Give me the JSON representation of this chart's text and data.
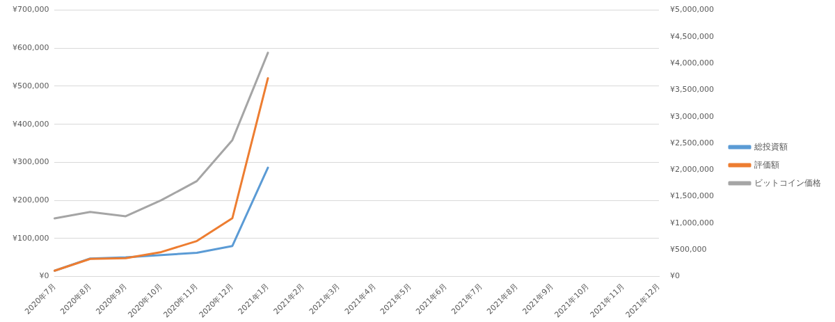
{
  "chart_data": {
    "type": "line",
    "categories": [
      "2020年7月",
      "2020年8月",
      "2020年9月",
      "2020年10月",
      "2020年11月",
      "2020年12月",
      "2021年1月",
      "2021年2月",
      "2021年3月",
      "2021年4月",
      "2021年5月",
      "2021年6月",
      "2021年7月",
      "2021年8月",
      "2021年9月",
      "2021年10月",
      "2021年11月",
      "2021年12月"
    ],
    "series": [
      {
        "name": "総投資額",
        "color": "#5b9bd5",
        "values": [
          15000,
          47000,
          50000,
          56000,
          62000,
          80000,
          286000,
          null,
          null,
          null,
          null,
          null,
          null,
          null,
          null,
          null,
          null,
          null
        ]
      },
      {
        "name": "評価額",
        "color": "#ed7d31",
        "values": [
          15000,
          46000,
          48000,
          64000,
          93000,
          153000,
          521000,
          null,
          null,
          null,
          null,
          null,
          null,
          null,
          null,
          null,
          null,
          null
        ]
      },
      {
        "name": "ビットコイン価格",
        "color": "#a5a5a5",
        "axis": "y2",
        "values": [
          1090000,
          1210000,
          1130000,
          1430000,
          1790000,
          2560000,
          4200000,
          null,
          null,
          null,
          null,
          null,
          null,
          null,
          null,
          null,
          null,
          null
        ]
      }
    ],
    "ylim": [
      0,
      700000
    ],
    "yticks": [
      {
        "value": 0,
        "label": "¥0"
      },
      {
        "value": 100000,
        "label": "¥100,000"
      },
      {
        "value": 200000,
        "label": "¥200,000"
      },
      {
        "value": 300000,
        "label": "¥300,000"
      },
      {
        "value": 400000,
        "label": "¥400,000"
      },
      {
        "value": 500000,
        "label": "¥500,000"
      },
      {
        "value": 600000,
        "label": "¥600,000"
      },
      {
        "value": 700000,
        "label": "¥700,000"
      }
    ],
    "y2lim": [
      0,
      5000000
    ],
    "y2ticks": [
      {
        "value": 0,
        "label": "¥0"
      },
      {
        "value": 500000,
        "label": "¥500,000"
      },
      {
        "value": 1000000,
        "label": "¥1,000,000"
      },
      {
        "value": 1500000,
        "label": "¥1,500,000"
      },
      {
        "value": 2000000,
        "label": "¥2,000,000"
      },
      {
        "value": 2500000,
        "label": "¥2,500,000"
      },
      {
        "value": 3000000,
        "label": "¥3,000,000"
      },
      {
        "value": 3500000,
        "label": "¥3,500,000"
      },
      {
        "value": 4000000,
        "label": "¥4,000,000"
      },
      {
        "value": 4500000,
        "label": "¥4,500,000"
      },
      {
        "value": 5000000,
        "label": "¥5,000,000"
      }
    ],
    "grid": "y",
    "legend": "right",
    "marker": "none",
    "line_style": "solid"
  }
}
